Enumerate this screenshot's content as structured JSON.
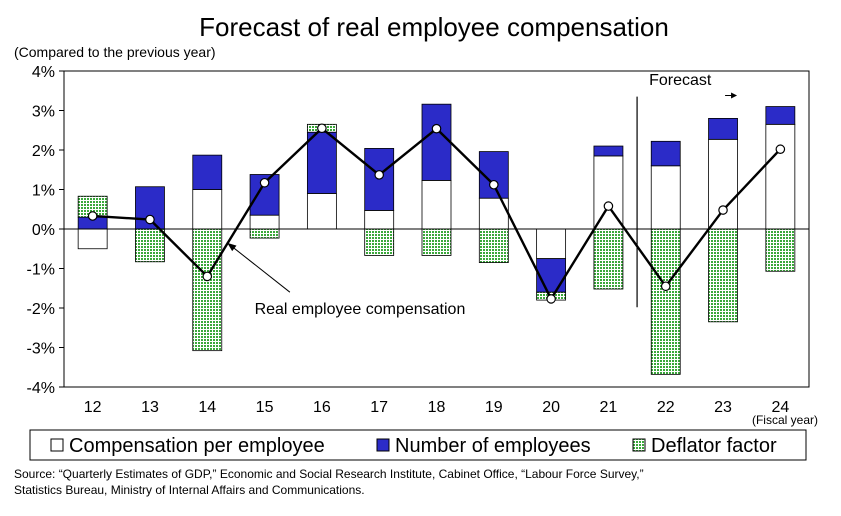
{
  "chart_data": {
    "type": "bar",
    "stacked": true,
    "title": "Forecast of real employee compensation",
    "ylabel": "(Compared to the previous year)",
    "xlabel": "(Fiscal year)",
    "ylim": [
      -4,
      4
    ],
    "y_ticks": [
      "4%",
      "3%",
      "2%",
      "1%",
      "0%",
      "-1%",
      "-2%",
      "-3%",
      "-4%"
    ],
    "y_tick_values": [
      4,
      3,
      2,
      1,
      0,
      -1,
      -2,
      -3,
      -4
    ],
    "categories": [
      "12",
      "13",
      "14",
      "15",
      "16",
      "17",
      "18",
      "19",
      "20",
      "21",
      "22",
      "23",
      "24"
    ],
    "series": [
      {
        "name": "Compensation per employee",
        "color": "#ffffff",
        "values": [
          -0.5,
          0.0,
          1.0,
          0.35,
          0.9,
          0.47,
          1.23,
          0.78,
          -0.75,
          1.85,
          1.6,
          2.27,
          2.65
        ]
      },
      {
        "name": "Number of employees",
        "color": "#2b2bc8",
        "values": [
          0.3,
          1.07,
          0.87,
          1.03,
          1.55,
          1.57,
          1.93,
          1.18,
          -0.85,
          0.25,
          0.62,
          0.53,
          0.45
        ]
      },
      {
        "name": "Deflator factor",
        "color": "#7fc97f",
        "values": [
          0.53,
          -0.83,
          -3.08,
          -0.23,
          0.2,
          -0.67,
          -0.67,
          -0.85,
          -0.2,
          -1.52,
          -3.68,
          -2.35,
          -1.07
        ]
      }
    ],
    "line": {
      "name": "Real employee compensation",
      "values": [
        0.33,
        0.24,
        -1.2,
        1.17,
        2.55,
        1.37,
        2.54,
        1.12,
        -1.77,
        0.58,
        -1.45,
        0.48,
        2.02
      ]
    },
    "forecast_label": "Forecast",
    "forecast_start_index": 10,
    "annotation": "Real employee compensation",
    "grid": false,
    "legend_position": "bottom"
  },
  "source_lines": [
    "Source: “Quarterly Estimates of GDP,” Economic and Social Research Institute, Cabinet Office, “Labour Force Survey,”",
    "Statistics Bureau, Ministry of Internal Affairs and Communications."
  ]
}
